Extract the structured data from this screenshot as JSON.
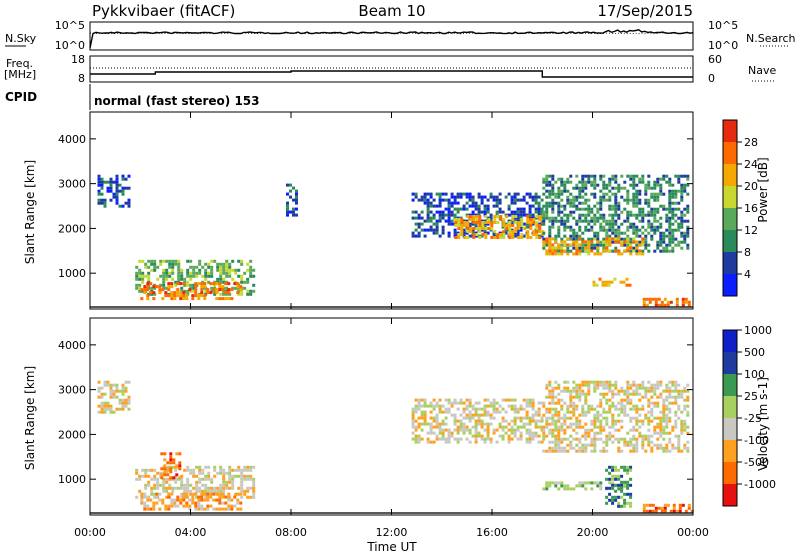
{
  "header": {
    "radar": "Pykkvibaer (fitACF)",
    "beam": "Beam 10",
    "date": "17/Sep/2015"
  },
  "noise_panel": {
    "left_label": "N.Sky",
    "right_label": "N.Search",
    "y_ticks_left": [
      "10^5",
      "10^0"
    ],
    "y_ticks_right": [
      "10^5",
      "10^0"
    ]
  },
  "freq_panel": {
    "left_label_line1": "Freq.",
    "left_label_line2": "[MHz]",
    "right_label": "Nave",
    "y_ticks_left": [
      "18",
      "8"
    ],
    "y_ticks_right": [
      "60",
      "0"
    ]
  },
  "cpid_panel": {
    "label": "CPID",
    "text": "normal (fast stereo) 153"
  },
  "x_axis": {
    "label": "Time UT",
    "ticks": [
      "00:00",
      "04:00",
      "08:00",
      "12:00",
      "16:00",
      "20:00",
      "00:00"
    ]
  },
  "y_axis": {
    "label": "Slant Range [km]",
    "ticks": [
      "1000",
      "2000",
      "3000",
      "4000"
    ]
  },
  "colors": {
    "power": [
      "#0a1eff",
      "#1e3ca0",
      "#2a8a5a",
      "#5aa85a",
      "#c8d830",
      "#f4a800",
      "#ff6a00",
      "#e62a10"
    ],
    "velocity": [
      "#e61010",
      "#ff6a00",
      "#ffa020",
      "#c8c8c0",
      "#a8d060",
      "#3a9a50",
      "#1e3ca0",
      "#1020c8"
    ]
  },
  "chart_data": [
    {
      "type": "heatmap",
      "title": "Power",
      "colorbar_label": "Power [dB]",
      "colorbar_ticks": [
        "4",
        "8",
        "12",
        "16",
        "20",
        "24",
        "28"
      ],
      "x_unit": "hours UT",
      "xlim": [
        0,
        24
      ],
      "ylim": [
        200,
        4600
      ],
      "regions": [
        {
          "t0": 0.3,
          "t1": 1.6,
          "r0": 2500,
          "r1": 3200,
          "level": 1
        },
        {
          "t0": 1.8,
          "t1": 6.5,
          "r0": 500,
          "r1": 1300,
          "level": 3
        },
        {
          "t0": 2.0,
          "t1": 6.0,
          "r0": 400,
          "r1": 800,
          "level": 6
        },
        {
          "t0": 7.8,
          "t1": 8.2,
          "r0": 2300,
          "r1": 3000,
          "level": 1
        },
        {
          "t0": 12.8,
          "t1": 18.0,
          "r0": 1800,
          "r1": 2800,
          "level": 1
        },
        {
          "t0": 14.5,
          "t1": 18.0,
          "r0": 1800,
          "r1": 2300,
          "level": 5
        },
        {
          "t0": 18.0,
          "t1": 23.8,
          "r0": 1500,
          "r1": 3200,
          "level": 2
        },
        {
          "t0": 18.0,
          "t1": 22.0,
          "r0": 1400,
          "r1": 1800,
          "level": 5
        },
        {
          "t0": 20.0,
          "t1": 21.5,
          "r0": 700,
          "r1": 900,
          "level": 5
        },
        {
          "t0": 22.0,
          "t1": 24.0,
          "r0": 250,
          "r1": 450,
          "level": 6
        }
      ]
    },
    {
      "type": "heatmap",
      "title": "Velocity",
      "colorbar_label": "Velocity [m s-1]",
      "colorbar_ticks": [
        "-1000",
        "-500",
        "-100",
        "-25",
        "25",
        "100",
        "500",
        "1000"
      ],
      "x_unit": "hours UT",
      "xlim": [
        0,
        24
      ],
      "ylim": [
        200,
        4600
      ],
      "regions": [
        {
          "t0": 0.3,
          "t1": 1.6,
          "r0": 2500,
          "r1": 3200,
          "level": 3
        },
        {
          "t0": 1.8,
          "t1": 6.5,
          "r0": 600,
          "r1": 1300,
          "level": 3
        },
        {
          "t0": 2.8,
          "t1": 3.6,
          "r0": 1000,
          "r1": 1600,
          "level": 1
        },
        {
          "t0": 2.0,
          "t1": 6.0,
          "r0": 300,
          "r1": 700,
          "level": 2
        },
        {
          "t0": 12.8,
          "t1": 18.0,
          "r0": 1800,
          "r1": 2800,
          "level": 3
        },
        {
          "t0": 18.0,
          "t1": 23.8,
          "r0": 1600,
          "r1": 3200,
          "level": 3
        },
        {
          "t0": 18.0,
          "t1": 21.5,
          "r0": 750,
          "r1": 950,
          "level": 4
        },
        {
          "t0": 20.5,
          "t1": 21.5,
          "r0": 400,
          "r1": 1300,
          "level": 5
        },
        {
          "t0": 22.0,
          "t1": 24.0,
          "r0": 250,
          "r1": 450,
          "level": 1
        }
      ]
    }
  ]
}
